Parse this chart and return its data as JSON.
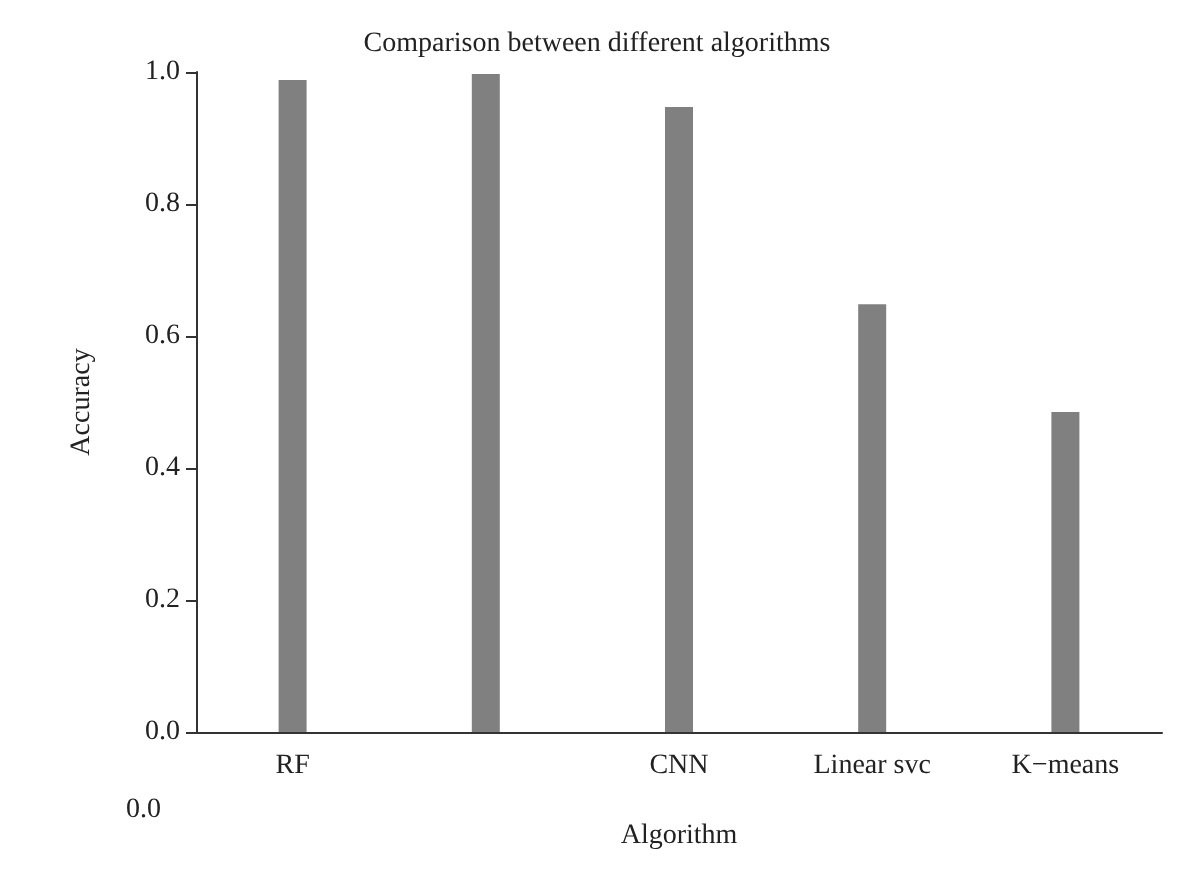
{
  "chart_data": {
    "type": "bar",
    "title": "Comparison between different algorithms",
    "xlabel": "Algorithm",
    "ylabel": "Accuracy",
    "categories": [
      "RF",
      null,
      "CNN",
      "Linear svc",
      "K−means"
    ],
    "values": [
      0.988,
      0.997,
      0.947,
      0.648,
      0.485
    ],
    "color": "#808080",
    "ylim": [
      0,
      1
    ],
    "yticks": [
      {
        "value": 0,
        "label": "0.0"
      },
      {
        "value": 0.2,
        "label": "0.2"
      },
      {
        "value": 0.4,
        "label": "0.4"
      },
      {
        "value": 0.6,
        "label": "0.6"
      },
      {
        "value": 0.8,
        "label": "0.8"
      },
      {
        "value": 1,
        "label": "1.0"
      }
    ],
    "grid": false,
    "annotations": [
      "0.0"
    ]
  }
}
